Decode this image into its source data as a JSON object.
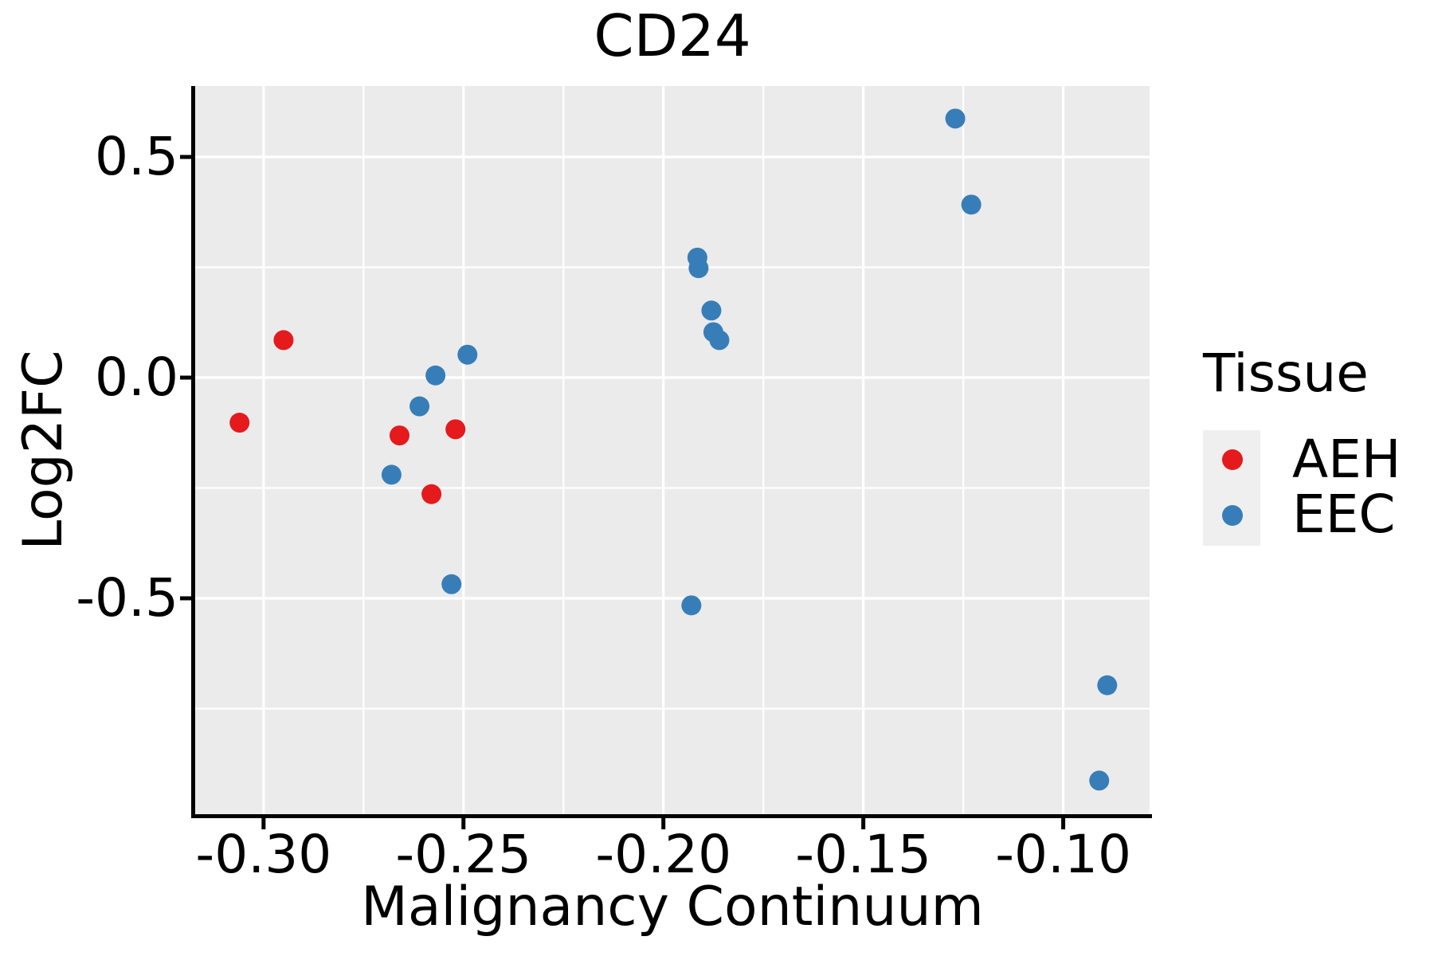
{
  "chart_data": {
    "type": "scatter",
    "title": "CD24",
    "xlabel": "Malignancy Continuum",
    "ylabel": "Log2FC",
    "xlim": [
      -0.3171,
      -0.0784
    ],
    "ylim": [
      -0.9892,
      0.6607
    ],
    "grid": true,
    "legend_position": "right",
    "legend_title": "Tissue",
    "x_ticks": [
      {
        "value": -0.3,
        "label": "-0.30"
      },
      {
        "value": -0.25,
        "label": "-0.25"
      },
      {
        "value": -0.2,
        "label": "-0.20"
      },
      {
        "value": -0.15,
        "label": "-0.15"
      },
      {
        "value": -0.1,
        "label": "-0.10"
      }
    ],
    "x_minor_ticks": [
      -0.275,
      -0.225,
      -0.175,
      -0.125
    ],
    "y_ticks": [
      {
        "value": 0.5,
        "label": "0.5"
      },
      {
        "value": 0.0,
        "label": "0.0"
      },
      {
        "value": -0.5,
        "label": "-0.5"
      }
    ],
    "y_minor_ticks": [
      0.25,
      -0.25,
      -0.75
    ],
    "series": [
      {
        "name": "AEH",
        "color": "#e41a1c",
        "points": [
          [
            -0.295,
            0.085
          ],
          [
            -0.306,
            -0.102
          ],
          [
            -0.266,
            -0.131
          ],
          [
            -0.252,
            -0.117
          ],
          [
            -0.258,
            -0.264
          ]
        ]
      },
      {
        "name": "EEC",
        "color": "#377eb8",
        "points": [
          [
            -0.249,
            0.052
          ],
          [
            -0.257,
            0.005
          ],
          [
            -0.261,
            -0.065
          ],
          [
            -0.268,
            -0.22
          ],
          [
            -0.253,
            -0.468
          ],
          [
            -0.1915,
            0.272
          ],
          [
            -0.1912,
            0.248
          ],
          [
            -0.188,
            0.152
          ],
          [
            -0.1875,
            0.103
          ],
          [
            -0.186,
            0.085
          ],
          [
            -0.193,
            -0.516
          ],
          [
            -0.127,
            0.587
          ],
          [
            -0.123,
            0.392
          ],
          [
            -0.089,
            -0.697
          ],
          [
            -0.091,
            -0.913
          ]
        ]
      }
    ],
    "colors": {
      "panel_bg": "#ebebeb",
      "grid": "#ffffff",
      "axis": "#000000",
      "AEH": "#e41a1c",
      "EEC": "#377eb8"
    },
    "marker_radius_px": 12.5
  },
  "legend": {
    "title": "Tissue",
    "items": [
      {
        "label": "AEH",
        "color": "#e41a1c"
      },
      {
        "label": "EEC",
        "color": "#377eb8"
      }
    ]
  }
}
